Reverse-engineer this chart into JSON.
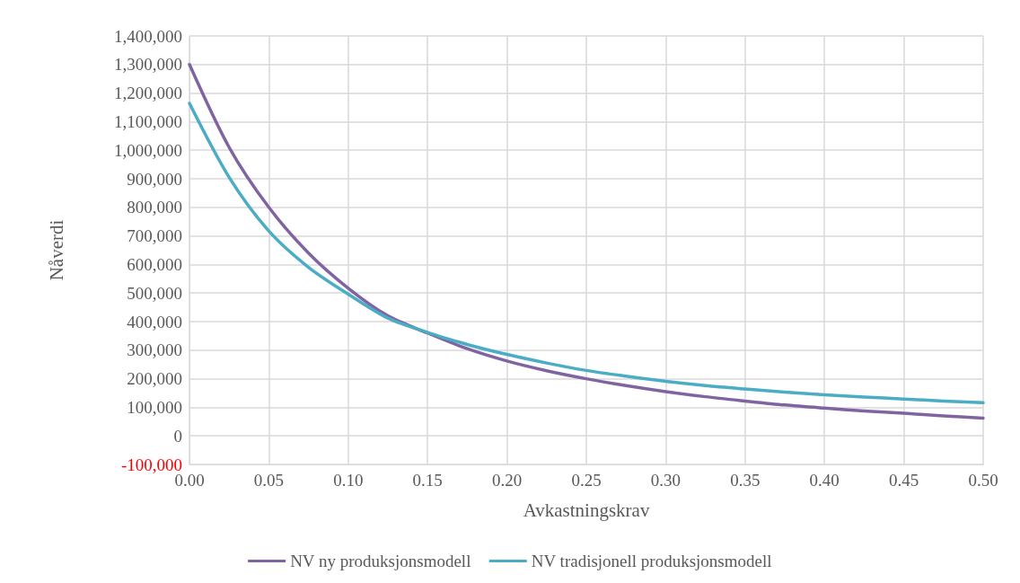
{
  "chart_data": {
    "type": "line",
    "xlabel": "Avkastningskrav",
    "ylabel": "Nåverdi",
    "x": [
      0,
      0.025,
      0.05,
      0.075,
      0.1,
      0.125,
      0.15,
      0.175,
      0.2,
      0.225,
      0.25,
      0.275,
      0.3,
      0.325,
      0.35,
      0.375,
      0.4,
      0.425,
      0.45,
      0.475,
      0.5
    ],
    "series": [
      {
        "name": "NV ny produksjonsmodell",
        "color": "#8064a2",
        "values": [
          1300000,
          1010000,
          800000,
          640000,
          517000,
          420000,
          360000,
          305000,
          262000,
          228000,
          200000,
          176000,
          155000,
          137000,
          122000,
          108000,
          97000,
          87000,
          79000,
          70000,
          62000
        ]
      },
      {
        "name": "NV tradisjonell produksjonsmodell",
        "color": "#4bacc6",
        "values": [
          1164000,
          905000,
          717000,
          590000,
          496000,
          412000,
          362000,
          320000,
          285000,
          255000,
          229000,
          209000,
          191000,
          176000,
          164000,
          153000,
          144000,
          136000,
          129000,
          122000,
          116000
        ]
      }
    ],
    "xlim": [
      0,
      0.5
    ],
    "xticks": [
      {
        "value": 0,
        "label": "0.00"
      },
      {
        "value": 0.05,
        "label": "0.05"
      },
      {
        "value": 0.1,
        "label": "0.10"
      },
      {
        "value": 0.15,
        "label": "0.15"
      },
      {
        "value": 0.2,
        "label": "0.20"
      },
      {
        "value": 0.25,
        "label": "0.25"
      },
      {
        "value": 0.3,
        "label": "0.30"
      },
      {
        "value": 0.35,
        "label": "0.35"
      },
      {
        "value": 0.4,
        "label": "0.40"
      },
      {
        "value": 0.45,
        "label": "0.45"
      },
      {
        "value": 0.5,
        "label": "0.50"
      }
    ],
    "ylim": [
      -100000,
      1400000
    ],
    "yticks": [
      {
        "value": -100000,
        "label": "-100,000"
      },
      0,
      {
        "value": 100000,
        "label": "100,000"
      },
      {
        "value": 200000,
        "label": "200,000"
      },
      {
        "value": 300000,
        "label": "300,000"
      },
      {
        "value": 400000,
        "label": "400,000"
      },
      {
        "value": 500000,
        "label": "500,000"
      },
      {
        "value": 600000,
        "label": "600,000"
      },
      {
        "value": 700000,
        "label": "700,000"
      },
      {
        "value": 800000,
        "label": "800,000"
      },
      {
        "value": 900000,
        "label": "900,000"
      },
      {
        "value": 1000000,
        "label": "1,000,000"
      },
      {
        "value": 1100000,
        "label": "1,100,000"
      },
      {
        "value": 1200000,
        "label": "1,200,000"
      },
      {
        "value": 1300000,
        "label": "1,300,000"
      },
      {
        "value": 1400000,
        "label": "1,400,000"
      }
    ],
    "grid": true,
    "legend": "bottom",
    "marker": "none",
    "line_style": "solid"
  }
}
